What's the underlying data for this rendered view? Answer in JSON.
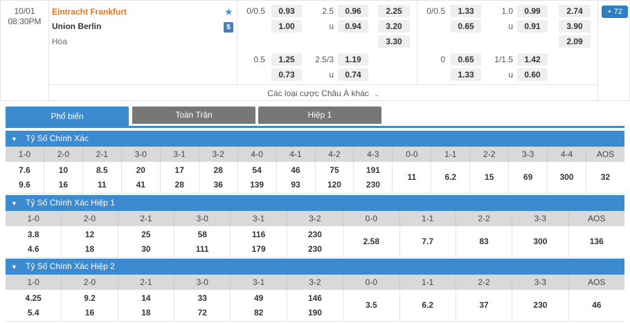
{
  "match": {
    "date": "10/01",
    "time": "08:30PM",
    "home_team": "Eintracht Frankfurt",
    "away_team": "Union Berlin",
    "draw_label": "Hòa",
    "more_count": "72",
    "more_bets_label": "Các loại cược Châu Á khác"
  },
  "markets": {
    "ft_hdp_1": {
      "line": "0/0.5",
      "home": "0.93",
      "away": "1.00"
    },
    "ft_ou_1": {
      "line": "2.5",
      "over": "0.96",
      "u_label": "u",
      "under": "0.94"
    },
    "ft_1x2": {
      "home": "2.25",
      "away": "3.20",
      "draw": "3.30"
    },
    "ft_hdp_2": {
      "line": "0.5",
      "home": "1.25",
      "away": "0.73"
    },
    "ft_ou_2": {
      "line": "2.5/3",
      "over": "1.19",
      "u_label": "u",
      "under": "0.74"
    },
    "h1_hdp_1": {
      "line": "0/0.5",
      "home": "1.33",
      "away": "0.65"
    },
    "h1_ou_1": {
      "line": "1.0",
      "over": "0.99",
      "u_label": "u",
      "under": "0.91"
    },
    "h1_1x2": {
      "home": "2.74",
      "away": "3.90",
      "draw": "2.09"
    },
    "h1_hdp_2": {
      "line": "0",
      "home": "0.65",
      "away": "1.33"
    },
    "h1_ou_2": {
      "line": "1/1.5",
      "over": "1.42",
      "u_label": "u",
      "under": "0.60"
    }
  },
  "tabs": [
    {
      "label": "Phổ biến"
    },
    {
      "label": "Toàn Trận"
    },
    {
      "label": "Hiệp 1"
    }
  ],
  "sections": [
    {
      "title": "Tỷ Số Chính Xác",
      "headers": [
        "1-0",
        "2-0",
        "2-1",
        "3-0",
        "3-1",
        "3-2",
        "4-0",
        "4-1",
        "4-2",
        "4-3",
        "0-0",
        "1-1",
        "2-2",
        "3-3",
        "4-4",
        "AOS"
      ],
      "values": [
        [
          "7.6",
          "9.6"
        ],
        [
          "10",
          "16"
        ],
        [
          "8.5",
          "11"
        ],
        [
          "20",
          "41"
        ],
        [
          "17",
          "28"
        ],
        [
          "28",
          "36"
        ],
        [
          "54",
          "139"
        ],
        [
          "46",
          "93"
        ],
        [
          "75",
          "120"
        ],
        [
          "191",
          "230"
        ],
        [
          "11"
        ],
        [
          "6.2"
        ],
        [
          "15"
        ],
        [
          "69"
        ],
        [
          "300"
        ],
        [
          "32"
        ]
      ]
    },
    {
      "title": "Tỷ Số Chính Xác Hiệp 1",
      "headers": [
        "1-0",
        "2-0",
        "2-1",
        "3-0",
        "3-1",
        "3-2",
        "0-0",
        "1-1",
        "2-2",
        "3-3",
        "AOS"
      ],
      "values": [
        [
          "3.8",
          "4.6"
        ],
        [
          "12",
          "18"
        ],
        [
          "25",
          "30"
        ],
        [
          "58",
          "111"
        ],
        [
          "116",
          "179"
        ],
        [
          "230",
          "230"
        ],
        [
          "2.58"
        ],
        [
          "7.7"
        ],
        [
          "83"
        ],
        [
          "300"
        ],
        [
          "136"
        ]
      ]
    },
    {
      "title": "Tỷ Số Chính Xác Hiệp 2",
      "headers": [
        "1-0",
        "2-0",
        "2-1",
        "3-0",
        "3-1",
        "3-2",
        "0-0",
        "1-1",
        "2-2",
        "3-3",
        "AOS"
      ],
      "values": [
        [
          "4.25",
          "5.4"
        ],
        [
          "9.2",
          "16"
        ],
        [
          "14",
          "18"
        ],
        [
          "33",
          "72"
        ],
        [
          "49",
          "82"
        ],
        [
          "146",
          "190"
        ],
        [
          "3.5"
        ],
        [
          "6.2"
        ],
        [
          "37"
        ],
        [
          "230"
        ],
        [
          "46"
        ]
      ]
    }
  ]
}
